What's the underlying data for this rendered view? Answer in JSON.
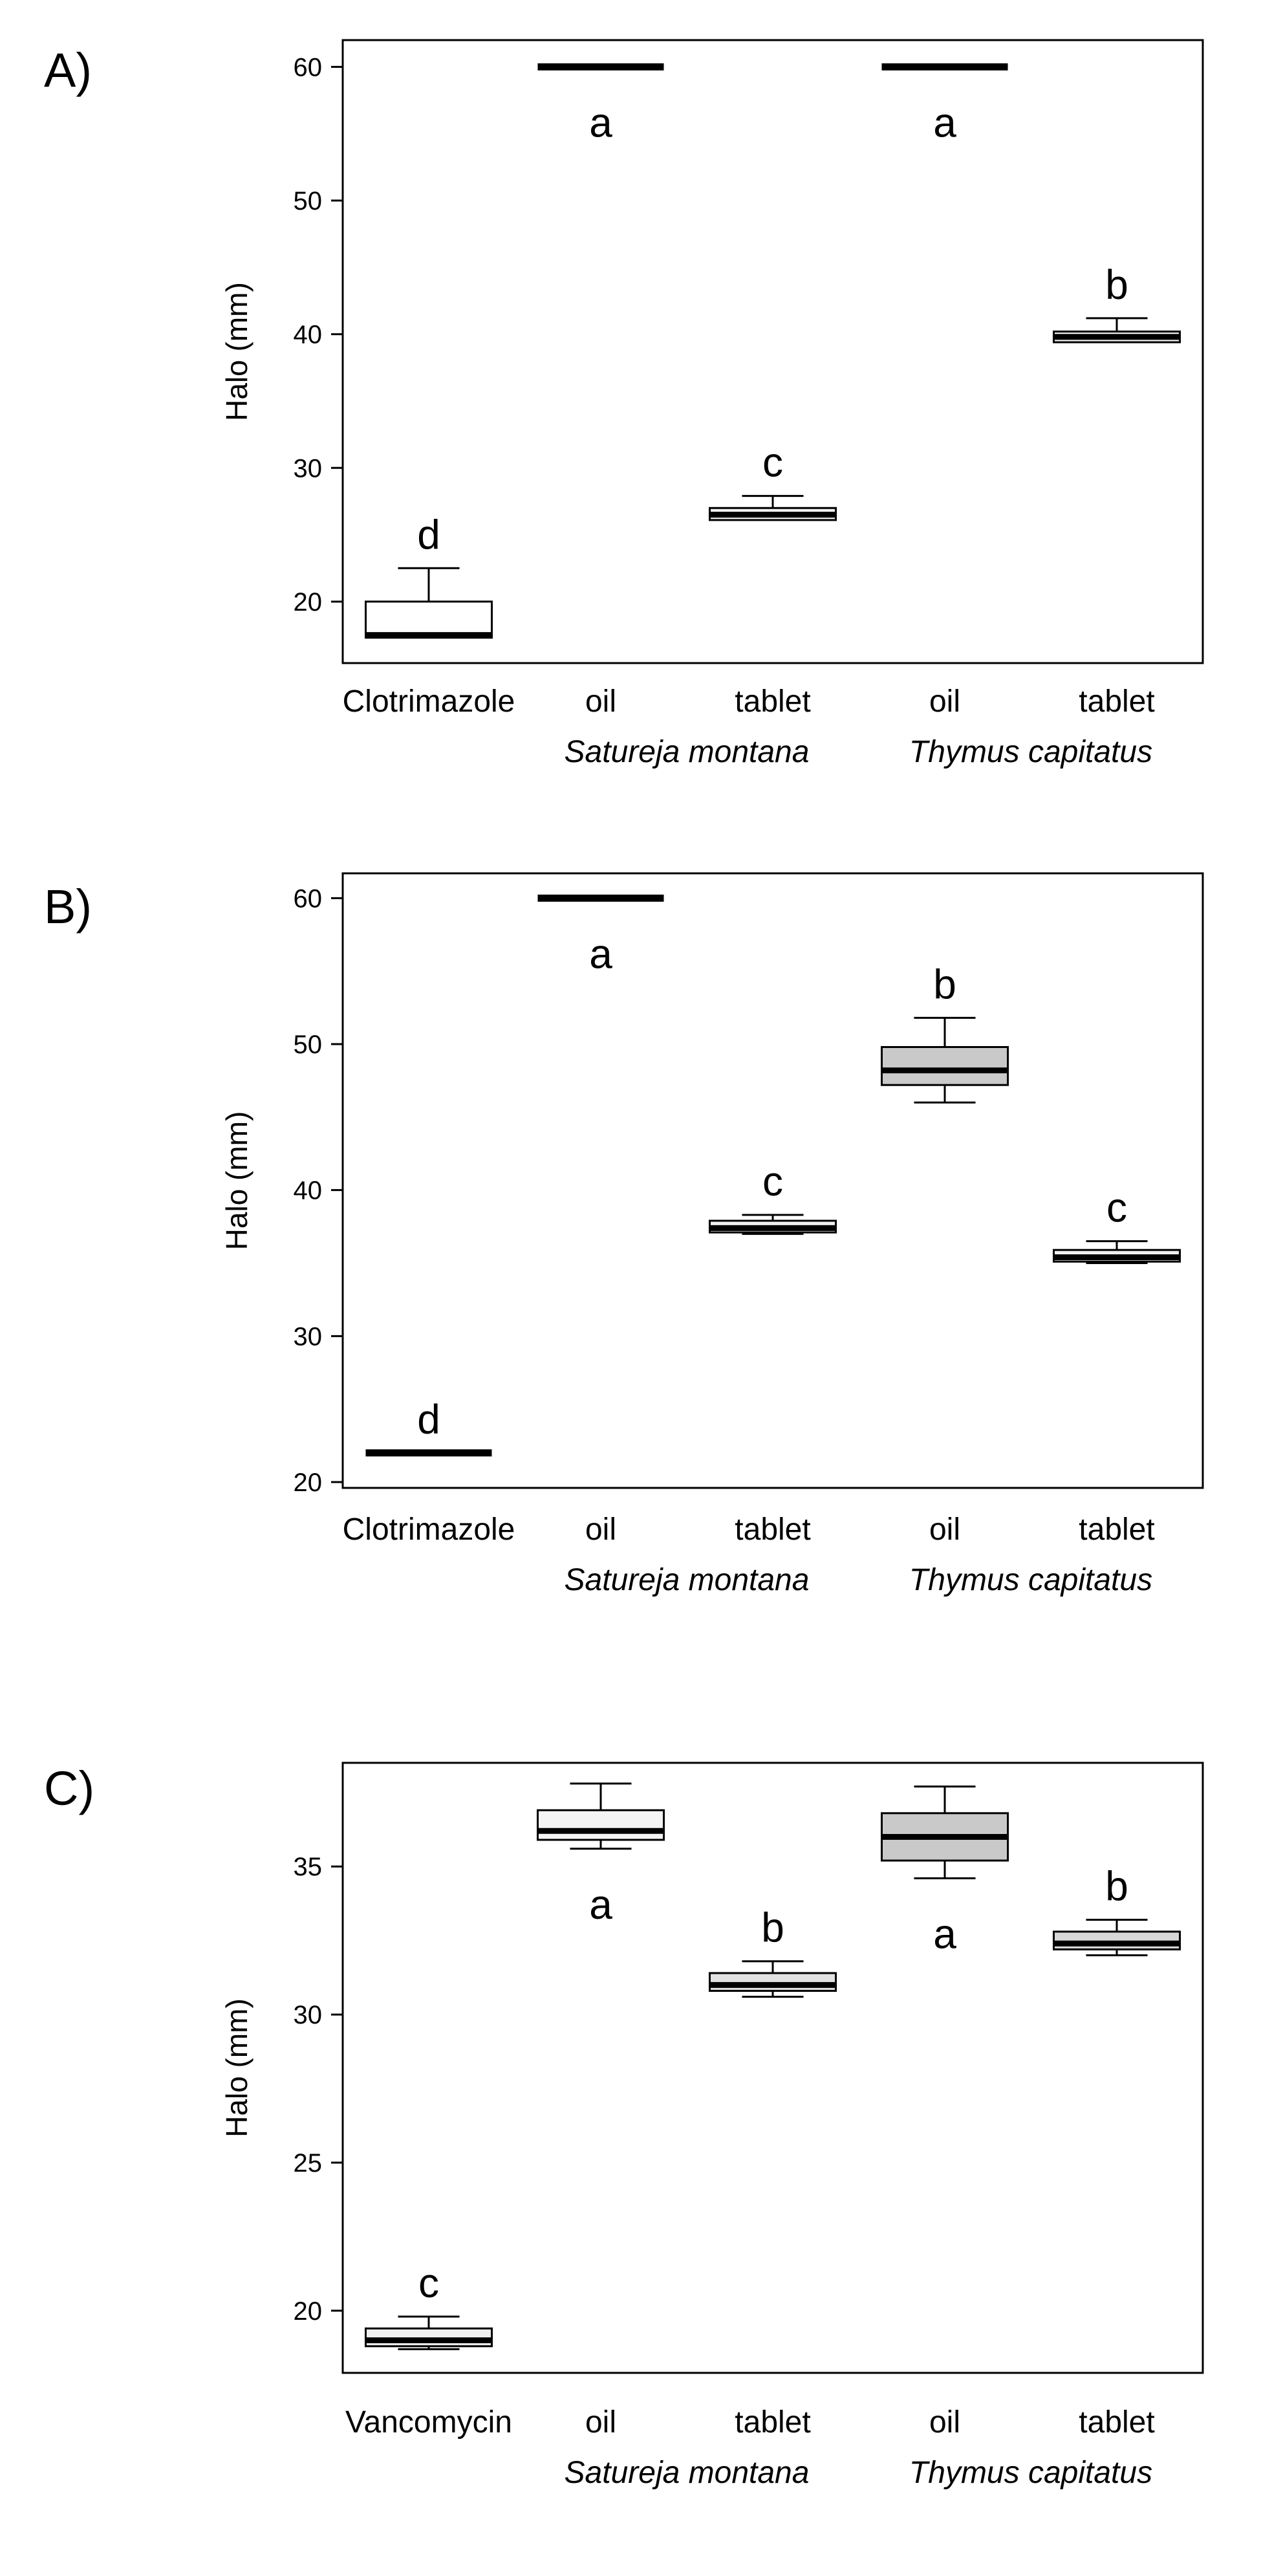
{
  "figure": {
    "background": "#ffffff",
    "axis_color": "#000000",
    "text_color": "#000000"
  },
  "chart_data": [
    {
      "type": "boxplot",
      "panel_label": "A)",
      "title": "",
      "xlabel": "",
      "ylabel": "Halo (mm)",
      "ylim": [
        15.4,
        62
      ],
      "yticks": [
        20,
        30,
        40,
        50,
        60
      ],
      "grid": false,
      "legend": "none",
      "categories": [
        "Clotrimazole",
        "oil",
        "tablet",
        "oil",
        "tablet"
      ],
      "group_labels": [
        {
          "text": "Satureja montana",
          "between": [
            1,
            2
          ]
        },
        {
          "text": "Thymus capitatus",
          "between": [
            3,
            4
          ]
        }
      ],
      "boxes": [
        {
          "category": "Clotrimazole",
          "min": 17.3,
          "q1": 17.3,
          "median": 17.5,
          "q3": 20.0,
          "max": 22.5,
          "letter": "d",
          "letter_pos": "above",
          "fill": "#ffffff"
        },
        {
          "category": "oil (Satureja montana)",
          "min": 60,
          "q1": 60,
          "median": 60,
          "q3": 60,
          "max": 60,
          "letter": "a",
          "letter_pos": "below",
          "fill": "#ffffff"
        },
        {
          "category": "tablet (Satureja montana)",
          "min": 26.1,
          "q1": 26.1,
          "median": 26.5,
          "q3": 27.0,
          "max": 27.9,
          "letter": "c",
          "letter_pos": "above",
          "fill": "#efefef"
        },
        {
          "category": "oil (Thymus capitatus)",
          "min": 60,
          "q1": 60,
          "median": 60,
          "q3": 60,
          "max": 60,
          "letter": "a",
          "letter_pos": "below",
          "fill": "#ffffff"
        },
        {
          "category": "tablet (Thymus capitatus)",
          "min": 39.4,
          "q1": 39.4,
          "median": 39.8,
          "q3": 40.2,
          "max": 41.2,
          "letter": "b",
          "letter_pos": "above",
          "fill": "#efefef"
        }
      ]
    },
    {
      "type": "boxplot",
      "panel_label": "B)",
      "title": "",
      "xlabel": "",
      "ylabel": "Halo (mm)",
      "ylim": [
        19.6,
        61.7
      ],
      "yticks": [
        20,
        30,
        40,
        50,
        60
      ],
      "grid": false,
      "legend": "none",
      "categories": [
        "Clotrimazole",
        "oil",
        "tablet",
        "oil",
        "tablet"
      ],
      "group_labels": [
        {
          "text": "Satureja montana",
          "between": [
            1,
            2
          ]
        },
        {
          "text": "Thymus capitatus",
          "between": [
            3,
            4
          ]
        }
      ],
      "boxes": [
        {
          "category": "Clotrimazole",
          "min": 22,
          "q1": 22,
          "median": 22,
          "q3": 22,
          "max": 22,
          "letter": "d",
          "letter_pos": "above",
          "fill": "#ffffff"
        },
        {
          "category": "oil (Satureja montana)",
          "min": 60,
          "q1": 60,
          "median": 60,
          "q3": 60,
          "max": 60,
          "letter": "a",
          "letter_pos": "below",
          "fill": "#ffffff"
        },
        {
          "category": "tablet (Satureja montana)",
          "min": 37.0,
          "q1": 37.1,
          "median": 37.4,
          "q3": 37.9,
          "max": 38.3,
          "letter": "c",
          "letter_pos": "above",
          "fill": "#efefef"
        },
        {
          "category": "oil (Thymus capitatus)",
          "min": 46.0,
          "q1": 47.2,
          "median": 48.2,
          "q3": 49.8,
          "max": 51.8,
          "letter": "b",
          "letter_pos": "above",
          "fill": "#c9c9c9"
        },
        {
          "category": "tablet (Thymus capitatus)",
          "min": 35.0,
          "q1": 35.1,
          "median": 35.4,
          "q3": 35.9,
          "max": 36.5,
          "letter": "c",
          "letter_pos": "above",
          "fill": "#efefef"
        }
      ]
    },
    {
      "type": "boxplot",
      "panel_label": "C)",
      "title": "",
      "xlabel": "",
      "ylabel": "Halo (mm)",
      "ylim": [
        17.9,
        38.5
      ],
      "yticks": [
        20,
        25,
        30,
        35
      ],
      "grid": false,
      "legend": "none",
      "categories": [
        "Vancomycin",
        "oil",
        "tablet",
        "oil",
        "tablet"
      ],
      "group_labels": [
        {
          "text": "Satureja montana",
          "between": [
            1,
            2
          ]
        },
        {
          "text": "Thymus capitatus",
          "between": [
            3,
            4
          ]
        }
      ],
      "boxes": [
        {
          "category": "Vancomycin",
          "min": 18.7,
          "q1": 18.8,
          "median": 19.0,
          "q3": 19.4,
          "max": 19.8,
          "letter": "c",
          "letter_pos": "above",
          "fill": "#efefef"
        },
        {
          "category": "oil (Satureja montana)",
          "min": 35.6,
          "q1": 35.9,
          "median": 36.2,
          "q3": 36.9,
          "max": 37.8,
          "letter": "a",
          "letter_pos": "below",
          "fill": "#f4f4f4"
        },
        {
          "category": "tablet (Satureja montana)",
          "min": 30.6,
          "q1": 30.8,
          "median": 31.0,
          "q3": 31.4,
          "max": 31.8,
          "letter": "b",
          "letter_pos": "above",
          "fill": "#e2e2e2"
        },
        {
          "category": "oil (Thymus capitatus)",
          "min": 34.6,
          "q1": 35.2,
          "median": 36.0,
          "q3": 36.8,
          "max": 37.7,
          "letter": "a",
          "letter_pos": "below",
          "fill": "#c9c9c9"
        },
        {
          "category": "tablet (Thymus capitatus)",
          "min": 32.0,
          "q1": 32.2,
          "median": 32.4,
          "q3": 32.8,
          "max": 33.2,
          "letter": "b",
          "letter_pos": "above",
          "fill": "#d8d8d8"
        }
      ]
    }
  ]
}
